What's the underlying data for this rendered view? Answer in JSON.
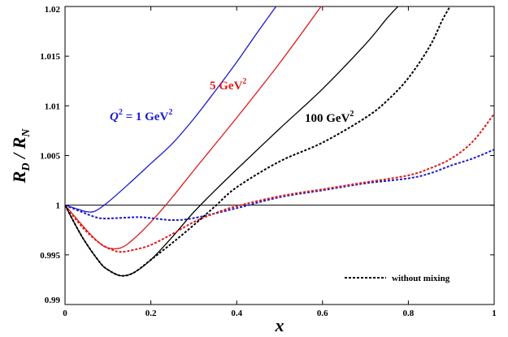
{
  "chart_data": {
    "type": "line",
    "title": "",
    "xlabel": "x",
    "ylabel": "R_D / R_N",
    "xlim": [
      0,
      1
    ],
    "ylim": [
      0.99,
      1.02
    ],
    "grid": false,
    "xticks": [
      "0",
      "0.2",
      "0.4",
      "0.6",
      "0.8",
      "1"
    ],
    "yticks": [
      "0.99",
      "0.995",
      "1",
      "1.005",
      "1.01",
      "1.015",
      "1.02"
    ],
    "annotations": [
      {
        "id": "q1",
        "text": "Q² = 1 GeV²",
        "q": "Q",
        "sup1": "2",
        "mid": " = 1 GeV",
        "sup2": "2",
        "color": "#1a1ad0"
      },
      {
        "id": "q5",
        "text": "5 GeV²",
        "mid": "5 GeV",
        "sup2": "2",
        "color": "#e01a1a"
      },
      {
        "id": "q100",
        "text": "100 GeV²",
        "mid": "100 GeV",
        "sup2": "2",
        "color": "#000000"
      }
    ],
    "legend": {
      "text": "without mixing",
      "style": "dashed",
      "position": "bottom-right"
    },
    "series": [
      {
        "id": "q1-mix",
        "color": "#1a1ad0",
        "style": "solid",
        "points": [
          [
            0,
            1.0
          ],
          [
            0.03,
            0.9996
          ],
          [
            0.05,
            0.99935
          ],
          [
            0.07,
            0.9994
          ],
          [
            0.1,
            1.0003
          ],
          [
            0.15,
            1.0022
          ],
          [
            0.2,
            1.0042
          ],
          [
            0.25,
            1.0062
          ],
          [
            0.3,
            1.0087
          ],
          [
            0.35,
            1.0115
          ],
          [
            0.4,
            1.0144
          ],
          [
            0.45,
            1.0175
          ],
          [
            0.5,
            1.0205
          ]
        ]
      },
      {
        "id": "q5-mix",
        "color": "#e01a1a",
        "style": "solid",
        "points": [
          [
            0,
            1.0
          ],
          [
            0.05,
            0.9975
          ],
          [
            0.08,
            0.9962
          ],
          [
            0.1,
            0.9957
          ],
          [
            0.13,
            0.9957
          ],
          [
            0.16,
            0.9966
          ],
          [
            0.2,
            0.9983
          ],
          [
            0.25,
            1.0008
          ],
          [
            0.3,
            1.0035
          ],
          [
            0.4,
            1.0088
          ],
          [
            0.5,
            1.0143
          ],
          [
            0.6,
            1.0202
          ]
        ]
      },
      {
        "id": "q100-mix",
        "color": "#000000",
        "style": "solid",
        "points": [
          [
            0,
            1.0
          ],
          [
            0.04,
            0.9968
          ],
          [
            0.08,
            0.9943
          ],
          [
            0.1,
            0.9935
          ],
          [
            0.13,
            0.9929
          ],
          [
            0.16,
            0.9932
          ],
          [
            0.2,
            0.9945
          ],
          [
            0.25,
            0.9968
          ],
          [
            0.3,
            0.9993
          ],
          [
            0.35,
            1.0015
          ],
          [
            0.4,
            1.0036
          ],
          [
            0.5,
            1.0077
          ],
          [
            0.6,
            1.0117
          ],
          [
            0.7,
            1.0162
          ],
          [
            0.75,
            1.0188
          ],
          [
            0.78,
            1.0202
          ]
        ]
      },
      {
        "id": "q1-nomix",
        "color": "#1a1ad0",
        "style": "dashed",
        "points": [
          [
            0,
            1.0
          ],
          [
            0.04,
            0.9993
          ],
          [
            0.08,
            0.9987
          ],
          [
            0.12,
            0.9987
          ],
          [
            0.17,
            0.9988
          ],
          [
            0.2,
            0.9987
          ],
          [
            0.25,
            0.9985
          ],
          [
            0.3,
            0.9987
          ],
          [
            0.4,
            0.9997
          ],
          [
            0.5,
            1.0008
          ],
          [
            0.6,
            1.0015
          ],
          [
            0.7,
            1.0022
          ],
          [
            0.8,
            1.0027
          ],
          [
            0.85,
            1.0032
          ],
          [
            0.9,
            1.004
          ],
          [
            0.95,
            1.0047
          ],
          [
            1.0,
            1.0056
          ]
        ]
      },
      {
        "id": "q5-nomix",
        "color": "#e01a1a",
        "style": "dashed",
        "points": [
          [
            0,
            1.0
          ],
          [
            0.04,
            0.9978
          ],
          [
            0.08,
            0.9962
          ],
          [
            0.11,
            0.9955
          ],
          [
            0.13,
            0.9953
          ],
          [
            0.16,
            0.9955
          ],
          [
            0.2,
            0.996
          ],
          [
            0.25,
            0.9971
          ],
          [
            0.3,
            0.9983
          ],
          [
            0.35,
            0.9992
          ],
          [
            0.4,
            0.9999
          ],
          [
            0.5,
            1.0009
          ],
          [
            0.6,
            1.0016
          ],
          [
            0.7,
            1.0023
          ],
          [
            0.8,
            1.003
          ],
          [
            0.85,
            1.0037
          ],
          [
            0.9,
            1.0047
          ],
          [
            0.95,
            1.0064
          ],
          [
            1.0,
            1.0092
          ]
        ]
      },
      {
        "id": "q100-nomix",
        "color": "#000000",
        "style": "dashed",
        "points": [
          [
            0,
            1.0
          ],
          [
            0.04,
            0.9968
          ],
          [
            0.08,
            0.9943
          ],
          [
            0.1,
            0.9935
          ],
          [
            0.13,
            0.9929
          ],
          [
            0.16,
            0.9932
          ],
          [
            0.2,
            0.9945
          ],
          [
            0.25,
            0.9962
          ],
          [
            0.3,
            0.998
          ],
          [
            0.35,
            0.9999
          ],
          [
            0.4,
            1.0018
          ],
          [
            0.5,
            1.0044
          ],
          [
            0.6,
            1.0063
          ],
          [
            0.7,
            1.0088
          ],
          [
            0.75,
            1.0105
          ],
          [
            0.8,
            1.0128
          ],
          [
            0.85,
            1.016
          ],
          [
            0.88,
            1.0187
          ],
          [
            0.9,
            1.0202
          ]
        ]
      }
    ]
  }
}
